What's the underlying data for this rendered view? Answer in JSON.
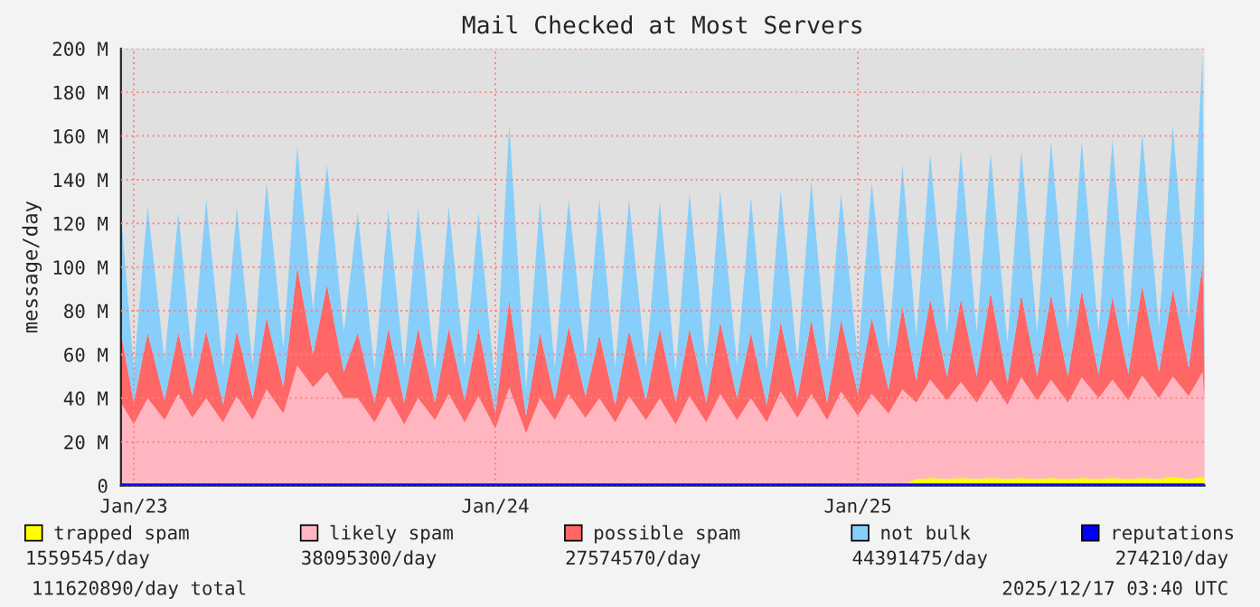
{
  "chart_data": {
    "type": "area",
    "stacked": true,
    "title": "Mail Checked at Most Servers",
    "ylabel": "message/day",
    "x": [
      "2022-12-19",
      "2023-01-01",
      "2023-01-15",
      "2023-02-01",
      "2023-02-15",
      "2023-03-01",
      "2023-03-15",
      "2023-04-01",
      "2023-04-15",
      "2023-05-01",
      "2023-05-15",
      "2023-06-01",
      "2023-06-15",
      "2023-07-01",
      "2023-07-15",
      "2023-08-01",
      "2023-08-15",
      "2023-09-01",
      "2023-09-15",
      "2023-10-01",
      "2023-10-15",
      "2023-11-01",
      "2023-11-15",
      "2023-12-01",
      "2023-12-15",
      "2024-01-01",
      "2024-01-15",
      "2024-02-01",
      "2024-02-15",
      "2024-03-01",
      "2024-03-15",
      "2024-04-01",
      "2024-04-15",
      "2024-05-01",
      "2024-05-15",
      "2024-06-01",
      "2024-06-15",
      "2024-07-01",
      "2024-07-15",
      "2024-08-01",
      "2024-08-15",
      "2024-09-01",
      "2024-09-15",
      "2024-10-01",
      "2024-10-15",
      "2024-11-01",
      "2024-11-15",
      "2024-12-01",
      "2024-12-15",
      "2025-01-01",
      "2025-01-15",
      "2025-02-01",
      "2025-02-15",
      "2025-03-01",
      "2025-03-15",
      "2025-04-01",
      "2025-04-15",
      "2025-05-01",
      "2025-05-15",
      "2025-06-01",
      "2025-06-15",
      "2025-07-01",
      "2025-07-15",
      "2025-08-01",
      "2025-08-15",
      "2025-09-01",
      "2025-09-15",
      "2025-10-01",
      "2025-10-15",
      "2025-11-01",
      "2025-11-15",
      "2025-12-01",
      "2025-12-15",
      "2025-12-17"
    ],
    "xlim": [
      "2022-12-19",
      "2025-12-17"
    ],
    "xticks": [
      {
        "value": "2023-01-01",
        "label": "Jan/23"
      },
      {
        "value": "2024-01-01",
        "label": "Jan/24"
      },
      {
        "value": "2025-01-01",
        "label": "Jan/25"
      }
    ],
    "ylim": [
      0,
      200
    ],
    "yticks": [
      {
        "value": 0,
        "label": "0"
      },
      {
        "value": 20,
        "label": "20 M"
      },
      {
        "value": 40,
        "label": "40 M"
      },
      {
        "value": 60,
        "label": "60 M"
      },
      {
        "value": 80,
        "label": "80 M"
      },
      {
        "value": 100,
        "label": "100 M"
      },
      {
        "value": 120,
        "label": "120 M"
      },
      {
        "value": 140,
        "label": "140 M"
      },
      {
        "value": 160,
        "label": "160 M"
      },
      {
        "value": 180,
        "label": "180 M"
      },
      {
        "value": 200,
        "label": "200 M"
      }
    ],
    "grid": true,
    "legend": "bottom",
    "series": [
      {
        "name": "trapped spam",
        "color": "#ffff00",
        "values": [
          0,
          0,
          0,
          0,
          0,
          0,
          0,
          0,
          0,
          0,
          0,
          0,
          0,
          0,
          0,
          0,
          0,
          0,
          0,
          0,
          0,
          0,
          0,
          0,
          0,
          0,
          0,
          0,
          0,
          0,
          0,
          0,
          0,
          0,
          0,
          0,
          0,
          0,
          0,
          0,
          0,
          0,
          0,
          0,
          0,
          0,
          0,
          0,
          0,
          0,
          0,
          0,
          0,
          3,
          3.5,
          3,
          3.5,
          3,
          3.5,
          3,
          3.5,
          3,
          3.5,
          3,
          3.5,
          3,
          3.5,
          3,
          3.5,
          3,
          4,
          3,
          4,
          3.5
        ]
      },
      {
        "name": "likely spam",
        "color": "#ffb6c1",
        "values": [
          38,
          28,
          40,
          30,
          42,
          31,
          40,
          29,
          41,
          30,
          44,
          33,
          55,
          45,
          52,
          40,
          40,
          29,
          41,
          28,
          40,
          30,
          42,
          29,
          41,
          26,
          45,
          24,
          40,
          30,
          42,
          31,
          40,
          29,
          41,
          30,
          40,
          28,
          41,
          29,
          42,
          30,
          40,
          29,
          43,
          31,
          42,
          30,
          43,
          32,
          42,
          33,
          44,
          35,
          45,
          36,
          44,
          35,
          45,
          34,
          46,
          36,
          45,
          35,
          46,
          37,
          45,
          36,
          47,
          37,
          46,
          38,
          48,
          35
        ]
      },
      {
        "name": "possible spam",
        "color": "#ff6666",
        "values": [
          32,
          10,
          30,
          9,
          28,
          10,
          31,
          8,
          30,
          10,
          33,
          12,
          45,
          15,
          40,
          12,
          30,
          9,
          31,
          10,
          32,
          8,
          30,
          10,
          31,
          7,
          40,
          8,
          30,
          9,
          31,
          10,
          29,
          8,
          30,
          9,
          32,
          10,
          31,
          9,
          33,
          10,
          30,
          8,
          32,
          9,
          34,
          8,
          33,
          10,
          35,
          11,
          38,
          10,
          37,
          11,
          38,
          12,
          40,
          10,
          38,
          11,
          39,
          12,
          40,
          11,
          38,
          12,
          41,
          12,
          40,
          13,
          50,
          15
        ]
      },
      {
        "name": "not bulk",
        "color": "#87cefa",
        "values": [
          55,
          15,
          58,
          18,
          55,
          16,
          60,
          17,
          56,
          15,
          62,
          18,
          55,
          20,
          55,
          18,
          55,
          15,
          54,
          16,
          55,
          14,
          56,
          15,
          53,
          12,
          80,
          12,
          60,
          15,
          58,
          16,
          62,
          17,
          60,
          15,
          58,
          14,
          62,
          16,
          60,
          15,
          62,
          16,
          60,
          17,
          64,
          18,
          58,
          16,
          62,
          18,
          65,
          20,
          66,
          19,
          68,
          20,
          64,
          18,
          66,
          20,
          70,
          21,
          68,
          19,
          72,
          20,
          70,
          21,
          75,
          22,
          95,
          20
        ]
      },
      {
        "name": "reputations",
        "type": "line",
        "color": "#0000ff",
        "values": [
          0.3,
          0.3,
          0.3,
          0.3,
          0.3,
          0.3,
          0.3,
          0.3,
          0.3,
          0.3,
          0.3,
          0.3,
          0.3,
          0.3,
          0.3,
          0.3,
          0.3,
          0.3,
          0.3,
          0.3,
          0.3,
          0.3,
          0.3,
          0.3,
          0.3,
          0.3,
          0.3,
          0.3,
          0.3,
          0.3,
          0.3,
          0.3,
          0.3,
          0.3,
          0.3,
          0.3,
          0.3,
          0.3,
          0.3,
          0.3,
          0.3,
          0.3,
          0.3,
          0.3,
          0.3,
          0.3,
          0.3,
          0.3,
          0.3,
          0.3,
          0.3,
          0.3,
          0.3,
          0.3,
          0.3,
          0.3,
          0.3,
          0.3,
          0.3,
          0.3,
          0.3,
          0.3,
          0.3,
          0.3,
          0.3,
          0.3,
          0.3,
          0.3,
          0.3,
          0.3,
          0.3,
          0.3,
          0.3,
          0.3
        ]
      }
    ],
    "annotations": [
      "1559545/day",
      "38095300/day",
      "27574570/day",
      "44391475/day",
      "274210/day",
      "111620890/day total",
      "2025/12/17 03:40 UTC"
    ]
  }
}
